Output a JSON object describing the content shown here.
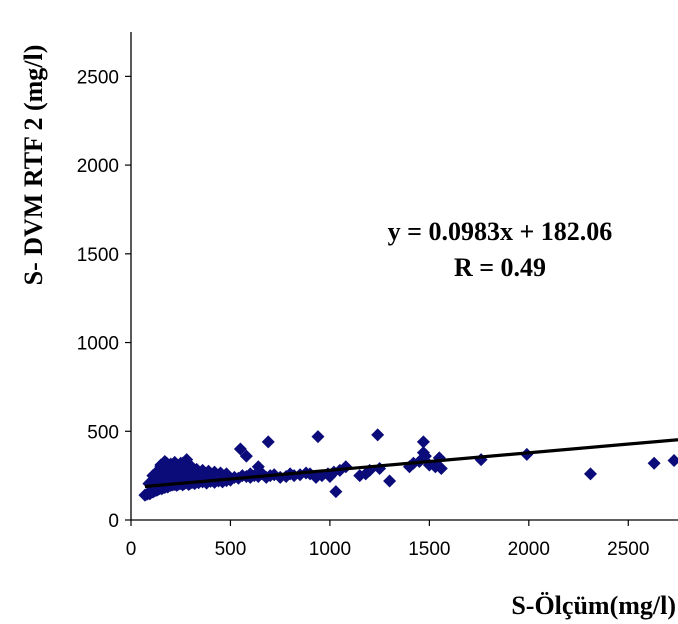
{
  "chart_data": {
    "type": "scatter",
    "title": "",
    "xlabel": "S-Ölçüm(mg/l)",
    "ylabel": "S- DVM RTF 2  (mg/l)",
    "xlim": [
      0,
      2750
    ],
    "ylim": [
      0,
      2750
    ],
    "xticks": [
      "0",
      "500",
      "1000",
      "1500",
      "2000",
      "2500"
    ],
    "yticks": [
      "0",
      "500",
      "1000",
      "1500",
      "2000",
      "2500"
    ],
    "grid": false,
    "marker": "diamond",
    "colors": {
      "points": "#0b0b7a",
      "trendline": "#000000"
    },
    "trendline": {
      "slope": 0.0983,
      "intercept": 182.06
    },
    "annotation": {
      "equation": "y = 0.0983x + 182.06",
      "r": "R = 0.49"
    },
    "series": [
      {
        "x": [
          70,
          80,
          90,
          95,
          100,
          105,
          110,
          115,
          120,
          125,
          130,
          135,
          140,
          145,
          150,
          155,
          160,
          165,
          170,
          175,
          180,
          185,
          190,
          200,
          210,
          220,
          230,
          240,
          250,
          260,
          270,
          280,
          290,
          300,
          310,
          320,
          340,
          360,
          380,
          400,
          420,
          440,
          460,
          480,
          500,
          90,
          100,
          110,
          120,
          130,
          140,
          150,
          160,
          170,
          180,
          190,
          200,
          210,
          220,
          230,
          240,
          250,
          260,
          270,
          280,
          300,
          320,
          110,
          120,
          130,
          150,
          170,
          190,
          210,
          230,
          250,
          270,
          290,
          130,
          150,
          170,
          190,
          210,
          230,
          250,
          270,
          290,
          310,
          330,
          360,
          390,
          420,
          450,
          480,
          150,
          180,
          200,
          220,
          250,
          280,
          300,
          120,
          140,
          160,
          180,
          200,
          220,
          240,
          260,
          280,
          300,
          330,
          360,
          400,
          170,
          280,
          260,
          520,
          540,
          560,
          580,
          600,
          620,
          640,
          660,
          680,
          700,
          720,
          750,
          780,
          800,
          820,
          850,
          880,
          900,
          930,
          960,
          990,
          1000,
          1020,
          1050,
          1080,
          1150,
          1180,
          1200,
          1250,
          1300,
          1400,
          1420,
          1450,
          1470,
          1480,
          1500,
          1530,
          1550,
          1560,
          550,
          580,
          640,
          690,
          940,
          1240,
          1470,
          1760,
          1990,
          2310,
          2630,
          2730,
          1030,
          600
        ],
        "y": [
          140,
          145,
          150,
          148,
          155,
          160,
          158,
          162,
          165,
          170,
          168,
          172,
          175,
          178,
          180,
          176,
          182,
          185,
          183,
          188,
          190,
          186,
          192,
          195,
          198,
          200,
          195,
          202,
          205,
          198,
          206,
          210,
          200,
          208,
          212,
          205,
          210,
          215,
          208,
          218,
          212,
          220,
          215,
          222,
          225,
          205,
          215,
          225,
          235,
          240,
          245,
          250,
          255,
          240,
          250,
          260,
          245,
          255,
          265,
          250,
          260,
          270,
          255,
          265,
          250,
          260,
          270,
          250,
          260,
          270,
          280,
          275,
          285,
          280,
          290,
          285,
          295,
          280,
          265,
          300,
          290,
          305,
          295,
          300,
          310,
          295,
          280,
          290,
          285,
          280,
          275,
          270,
          265,
          260,
          310,
          320,
          315,
          325,
          320,
          315,
          305,
          190,
          200,
          210,
          220,
          230,
          240,
          235,
          245,
          250,
          255,
          260,
          250,
          255,
          330,
          340,
          320,
          240,
          235,
          250,
          245,
          240,
          250,
          245,
          260,
          240,
          250,
          255,
          240,
          245,
          260,
          250,
          255,
          265,
          260,
          240,
          250,
          260,
          245,
          270,
          280,
          300,
          250,
          260,
          280,
          290,
          220,
          300,
          320,
          330,
          380,
          360,
          310,
          300,
          350,
          290,
          400,
          360,
          300,
          440,
          470,
          480,
          440,
          340,
          370,
          260,
          320,
          335,
          160,
          260
        ]
      }
    ]
  }
}
